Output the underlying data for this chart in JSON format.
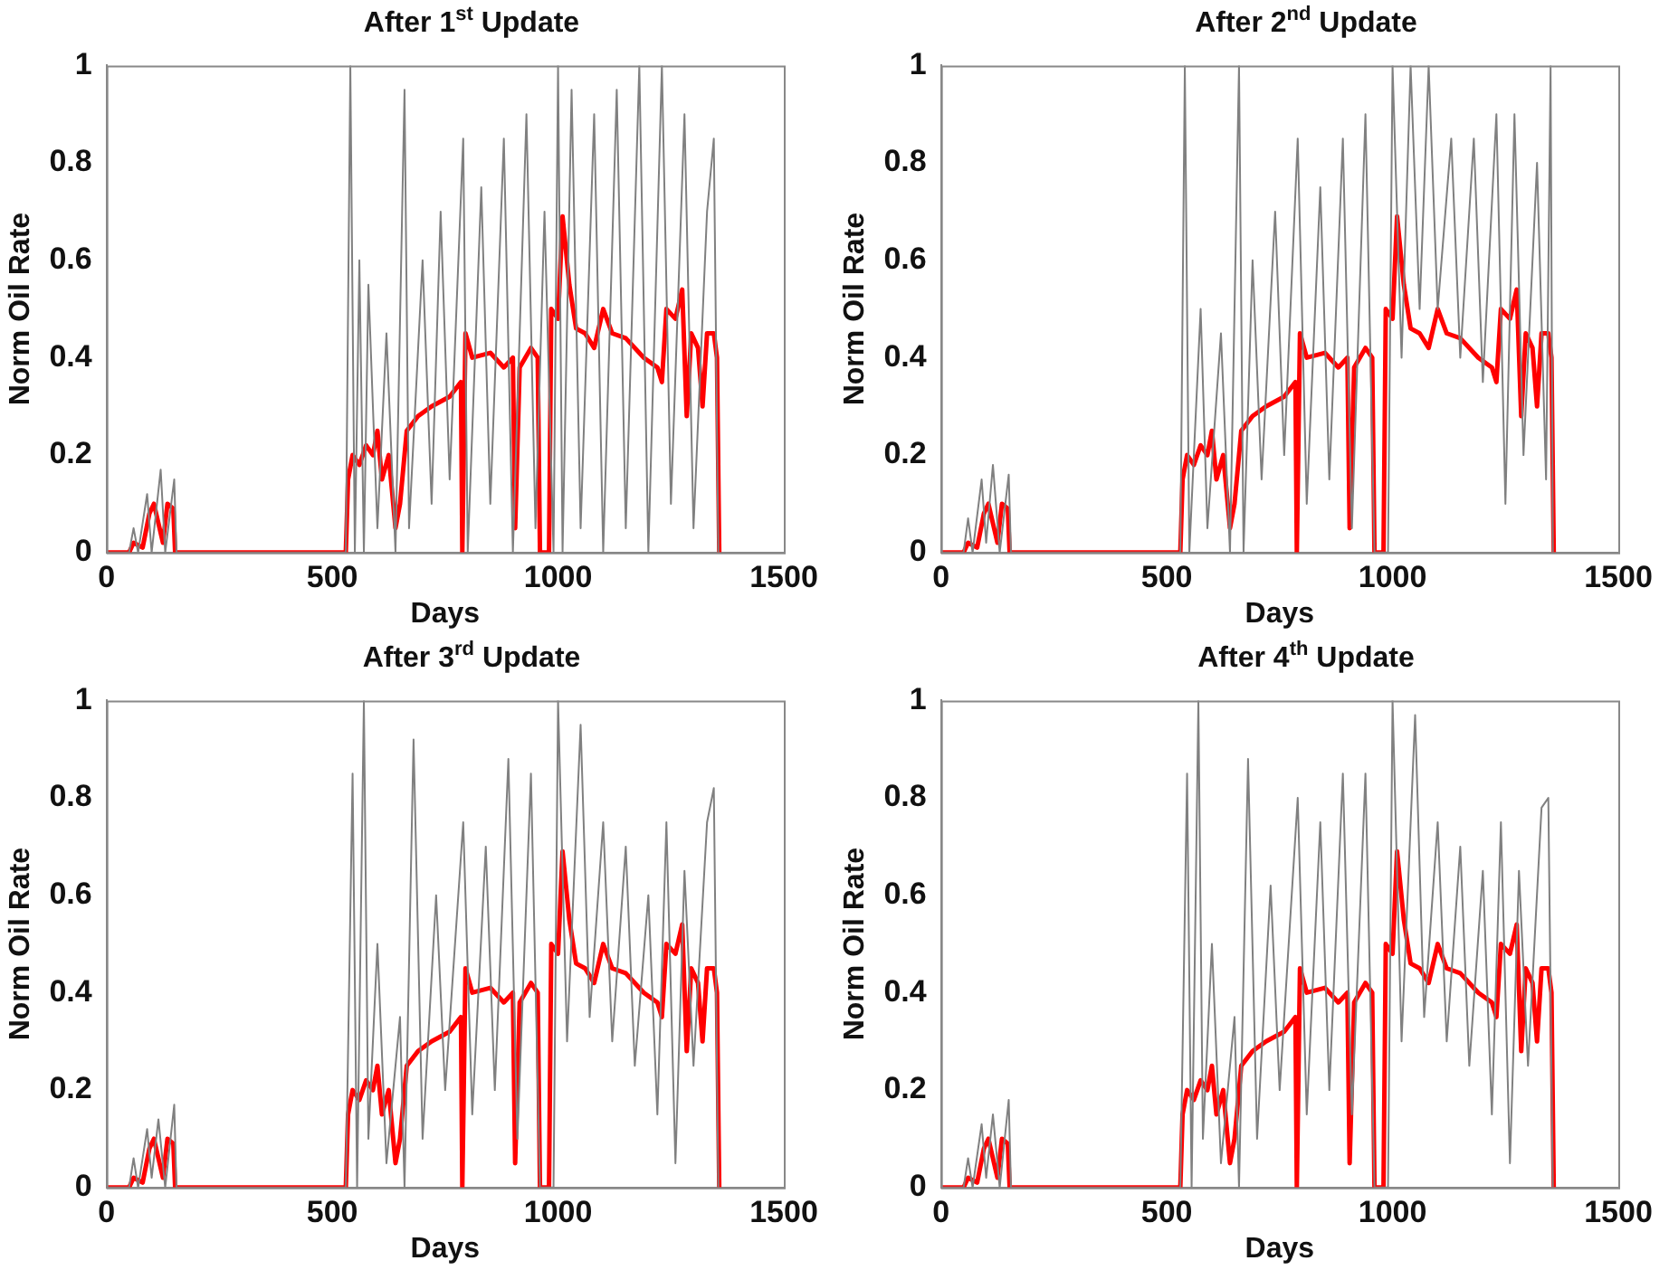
{
  "chart_data": [
    {
      "type": "line",
      "title": "After 1$^{st}$ Update",
      "xlabel": "Days",
      "ylabel": "Norm Oil Rate",
      "xlim": [
        0,
        1500
      ],
      "xticks": [
        0,
        500,
        1000,
        1500
      ],
      "ylim": [
        0,
        1
      ],
      "yticks": [
        0,
        0.2,
        0.4,
        0.6,
        0.8,
        1
      ],
      "grid": false,
      "legend": false,
      "marker": "none",
      "line_style": "solid",
      "series": [
        {
          "color": "#808080",
          "x": [
            0,
            50,
            60,
            70,
            90,
            100,
            120,
            130,
            150,
            155,
            530,
            540,
            550,
            560,
            570,
            580,
            600,
            620,
            640,
            660,
            670,
            700,
            720,
            740,
            760,
            790,
            800,
            830,
            850,
            880,
            900,
            930,
            950,
            970,
            990,
            1000,
            1010,
            1030,
            1050,
            1080,
            1100,
            1130,
            1150,
            1180,
            1200,
            1230,
            1250,
            1280,
            1300,
            1330,
            1345,
            1355
          ],
          "values": [
            0,
            0,
            0.05,
            0,
            0.12,
            0,
            0.17,
            0,
            0.15,
            0,
            0,
            1,
            0,
            0.6,
            0,
            0.55,
            0.05,
            0.45,
            0,
            0.95,
            0.05,
            0.6,
            0.1,
            0.7,
            0.15,
            0.85,
            0,
            0.75,
            0.1,
            0.85,
            0,
            0.9,
            0.05,
            0.7,
            0,
            1,
            0,
            0.95,
            0.05,
            0.9,
            0,
            0.95,
            0.05,
            1,
            0,
            1,
            0.1,
            0.9,
            0.05,
            0.7,
            0.85,
            0
          ]
        },
        {
          "color": "#ff0000",
          "x": [
            0,
            50,
            60,
            80,
            95,
            105,
            115,
            125,
            135,
            148,
            152,
            530,
            535,
            545,
            560,
            575,
            590,
            600,
            610,
            625,
            640,
            650,
            665,
            690,
            720,
            760,
            785,
            788,
            795,
            810,
            850,
            880,
            900,
            905,
            915,
            940,
            955,
            960,
            980,
            985,
            1000,
            1010,
            1025,
            1040,
            1060,
            1080,
            1100,
            1120,
            1150,
            1190,
            1220,
            1230,
            1240,
            1260,
            1275,
            1285,
            1295,
            1310,
            1320,
            1330,
            1345,
            1352,
            1357
          ],
          "values": [
            0,
            0,
            0.02,
            0.01,
            0.08,
            0.1,
            0.06,
            0.02,
            0.1,
            0.09,
            0,
            0,
            0.15,
            0.2,
            0.18,
            0.22,
            0.2,
            0.25,
            0.15,
            0.2,
            0.05,
            0.1,
            0.25,
            0.28,
            0.3,
            0.32,
            0.35,
            0,
            0.45,
            0.4,
            0.41,
            0.38,
            0.4,
            0.05,
            0.38,
            0.42,
            0.4,
            0,
            0,
            0.5,
            0.48,
            0.69,
            0.55,
            0.46,
            0.45,
            0.42,
            0.5,
            0.45,
            0.44,
            0.4,
            0.38,
            0.35,
            0.5,
            0.48,
            0.54,
            0.28,
            0.45,
            0.42,
            0.3,
            0.45,
            0.45,
            0.4,
            0
          ]
        }
      ]
    },
    {
      "type": "line",
      "title": "After 2$^{nd}$ Update",
      "xlabel": "Days",
      "ylabel": "Norm Oil Rate",
      "xlim": [
        0,
        1500
      ],
      "xticks": [
        0,
        500,
        1000,
        1500
      ],
      "ylim": [
        0,
        1
      ],
      "yticks": [
        0,
        0.2,
        0.4,
        0.6,
        0.8,
        1
      ],
      "grid": false,
      "legend": false,
      "marker": "none",
      "line_style": "solid",
      "series": [
        {
          "color": "#808080",
          "x": [
            0,
            50,
            60,
            70,
            90,
            100,
            115,
            130,
            150,
            155,
            530,
            540,
            550,
            575,
            590,
            620,
            640,
            660,
            670,
            690,
            710,
            740,
            760,
            790,
            810,
            840,
            860,
            890,
            910,
            940,
            960,
            990,
            1000,
            1020,
            1040,
            1060,
            1080,
            1100,
            1130,
            1150,
            1180,
            1200,
            1230,
            1250,
            1270,
            1290,
            1320,
            1340,
            1350,
            1355
          ],
          "values": [
            0,
            0,
            0.07,
            0,
            0.15,
            0.02,
            0.18,
            0,
            0.16,
            0,
            0,
            1,
            0,
            0.5,
            0.05,
            0.45,
            0,
            1,
            0,
            0.6,
            0.15,
            0.7,
            0.2,
            0.85,
            0.1,
            0.75,
            0.15,
            0.85,
            0.05,
            0.9,
            0,
            0,
            1,
            0.4,
            1,
            0.5,
            1,
            0.5,
            0.85,
            0.4,
            0.85,
            0.35,
            0.9,
            0.1,
            0.9,
            0.2,
            0.8,
            0.15,
            1,
            0
          ]
        },
        {
          "color": "#ff0000",
          "x": [
            0,
            50,
            60,
            80,
            95,
            105,
            115,
            125,
            135,
            148,
            152,
            530,
            535,
            545,
            560,
            575,
            590,
            600,
            610,
            625,
            640,
            650,
            665,
            690,
            720,
            760,
            785,
            788,
            795,
            810,
            850,
            880,
            900,
            905,
            915,
            940,
            955,
            960,
            980,
            985,
            1000,
            1010,
            1025,
            1040,
            1060,
            1080,
            1100,
            1120,
            1150,
            1190,
            1220,
            1230,
            1240,
            1260,
            1275,
            1285,
            1295,
            1310,
            1320,
            1330,
            1345,
            1352,
            1357
          ],
          "values": [
            0,
            0,
            0.02,
            0.01,
            0.08,
            0.1,
            0.06,
            0.02,
            0.1,
            0.09,
            0,
            0,
            0.15,
            0.2,
            0.18,
            0.22,
            0.2,
            0.25,
            0.15,
            0.2,
            0.05,
            0.1,
            0.25,
            0.28,
            0.3,
            0.32,
            0.35,
            0,
            0.45,
            0.4,
            0.41,
            0.38,
            0.4,
            0.05,
            0.38,
            0.42,
            0.4,
            0,
            0,
            0.5,
            0.48,
            0.69,
            0.55,
            0.46,
            0.45,
            0.42,
            0.5,
            0.45,
            0.44,
            0.4,
            0.38,
            0.35,
            0.5,
            0.48,
            0.54,
            0.28,
            0.45,
            0.42,
            0.3,
            0.45,
            0.45,
            0.4,
            0
          ]
        }
      ]
    },
    {
      "type": "line",
      "title": "After 3$^{rd}$ Update",
      "xlabel": "Days",
      "ylabel": "Norm Oil Rate",
      "xlim": [
        0,
        1500
      ],
      "xticks": [
        0,
        500,
        1000,
        1500
      ],
      "ylim": [
        0,
        1
      ],
      "yticks": [
        0,
        0.2,
        0.4,
        0.6,
        0.8,
        1
      ],
      "grid": false,
      "legend": false,
      "marker": "none",
      "line_style": "solid",
      "series": [
        {
          "color": "#808080",
          "x": [
            0,
            50,
            60,
            70,
            90,
            100,
            115,
            130,
            150,
            155,
            530,
            545,
            555,
            570,
            580,
            600,
            620,
            650,
            660,
            680,
            700,
            730,
            750,
            790,
            810,
            840,
            860,
            890,
            910,
            940,
            960,
            990,
            1000,
            1020,
            1050,
            1070,
            1100,
            1120,
            1150,
            1170,
            1200,
            1220,
            1240,
            1260,
            1280,
            1300,
            1330,
            1345,
            1355
          ],
          "values": [
            0,
            0,
            0.06,
            0,
            0.12,
            0.02,
            0.14,
            0,
            0.17,
            0,
            0,
            0.85,
            0,
            1,
            0.1,
            0.5,
            0.05,
            0.35,
            0,
            0.92,
            0.1,
            0.6,
            0.2,
            0.75,
            0.15,
            0.7,
            0.2,
            0.88,
            0.1,
            0.85,
            0,
            0,
            1,
            0.3,
            0.95,
            0.35,
            0.75,
            0.3,
            0.7,
            0.25,
            0.6,
            0.15,
            0.75,
            0.05,
            0.65,
            0.25,
            0.75,
            0.82,
            0
          ]
        },
        {
          "color": "#ff0000",
          "x": [
            0,
            50,
            60,
            80,
            95,
            105,
            115,
            125,
            135,
            148,
            152,
            530,
            535,
            545,
            560,
            575,
            590,
            600,
            610,
            625,
            640,
            650,
            665,
            690,
            720,
            760,
            785,
            788,
            795,
            810,
            850,
            880,
            900,
            905,
            915,
            940,
            955,
            960,
            980,
            985,
            1000,
            1010,
            1025,
            1040,
            1060,
            1080,
            1100,
            1120,
            1150,
            1190,
            1220,
            1230,
            1240,
            1260,
            1275,
            1285,
            1295,
            1310,
            1320,
            1330,
            1345,
            1352,
            1357
          ],
          "values": [
            0,
            0,
            0.02,
            0.01,
            0.08,
            0.1,
            0.06,
            0.02,
            0.1,
            0.09,
            0,
            0,
            0.15,
            0.2,
            0.18,
            0.22,
            0.2,
            0.25,
            0.15,
            0.2,
            0.05,
            0.1,
            0.25,
            0.28,
            0.3,
            0.32,
            0.35,
            0,
            0.45,
            0.4,
            0.41,
            0.38,
            0.4,
            0.05,
            0.38,
            0.42,
            0.4,
            0,
            0,
            0.5,
            0.48,
            0.69,
            0.55,
            0.46,
            0.45,
            0.42,
            0.5,
            0.45,
            0.44,
            0.4,
            0.38,
            0.35,
            0.5,
            0.48,
            0.54,
            0.28,
            0.45,
            0.42,
            0.3,
            0.45,
            0.45,
            0.4,
            0
          ]
        }
      ]
    },
    {
      "type": "line",
      "title": "After 4$^{th}$ Update",
      "xlabel": "Days",
      "ylabel": "Norm Oil Rate",
      "xlim": [
        0,
        1500
      ],
      "xticks": [
        0,
        500,
        1000,
        1500
      ],
      "ylim": [
        0,
        1
      ],
      "yticks": [
        0,
        0.2,
        0.4,
        0.6,
        0.8,
        1
      ],
      "grid": false,
      "legend": false,
      "marker": "none",
      "line_style": "solid",
      "series": [
        {
          "color": "#808080",
          "x": [
            0,
            50,
            60,
            70,
            90,
            100,
            115,
            130,
            150,
            155,
            530,
            545,
            555,
            570,
            580,
            600,
            620,
            650,
            660,
            680,
            700,
            730,
            750,
            790,
            810,
            840,
            860,
            890,
            910,
            940,
            960,
            990,
            1000,
            1020,
            1050,
            1070,
            1100,
            1120,
            1150,
            1170,
            1200,
            1220,
            1240,
            1260,
            1280,
            1300,
            1330,
            1345,
            1355
          ],
          "values": [
            0,
            0,
            0.06,
            0,
            0.13,
            0.02,
            0.15,
            0,
            0.18,
            0,
            0,
            0.85,
            0,
            1,
            0.1,
            0.5,
            0.05,
            0.35,
            0,
            0.88,
            0.1,
            0.62,
            0.2,
            0.8,
            0.15,
            0.75,
            0.2,
            0.85,
            0.15,
            0.85,
            0,
            0,
            1,
            0.3,
            0.97,
            0.35,
            0.75,
            0.3,
            0.7,
            0.25,
            0.65,
            0.15,
            0.75,
            0.05,
            0.65,
            0.25,
            0.78,
            0.8,
            0
          ]
        },
        {
          "color": "#ff0000",
          "x": [
            0,
            50,
            60,
            80,
            95,
            105,
            115,
            125,
            135,
            148,
            152,
            530,
            535,
            545,
            560,
            575,
            590,
            600,
            610,
            625,
            640,
            650,
            665,
            690,
            720,
            760,
            785,
            788,
            795,
            810,
            850,
            880,
            900,
            905,
            915,
            940,
            955,
            960,
            980,
            985,
            1000,
            1010,
            1025,
            1040,
            1060,
            1080,
            1100,
            1120,
            1150,
            1190,
            1220,
            1230,
            1240,
            1260,
            1275,
            1285,
            1295,
            1310,
            1320,
            1330,
            1345,
            1352,
            1357
          ],
          "values": [
            0,
            0,
            0.02,
            0.01,
            0.08,
            0.1,
            0.06,
            0.02,
            0.1,
            0.09,
            0,
            0,
            0.15,
            0.2,
            0.18,
            0.22,
            0.2,
            0.25,
            0.15,
            0.2,
            0.05,
            0.1,
            0.25,
            0.28,
            0.3,
            0.32,
            0.35,
            0,
            0.45,
            0.4,
            0.41,
            0.38,
            0.4,
            0.05,
            0.38,
            0.42,
            0.4,
            0,
            0,
            0.5,
            0.48,
            0.69,
            0.55,
            0.46,
            0.45,
            0.42,
            0.5,
            0.45,
            0.44,
            0.4,
            0.38,
            0.35,
            0.5,
            0.48,
            0.54,
            0.28,
            0.45,
            0.42,
            0.3,
            0.45,
            0.45,
            0.4,
            0
          ]
        }
      ]
    }
  ]
}
